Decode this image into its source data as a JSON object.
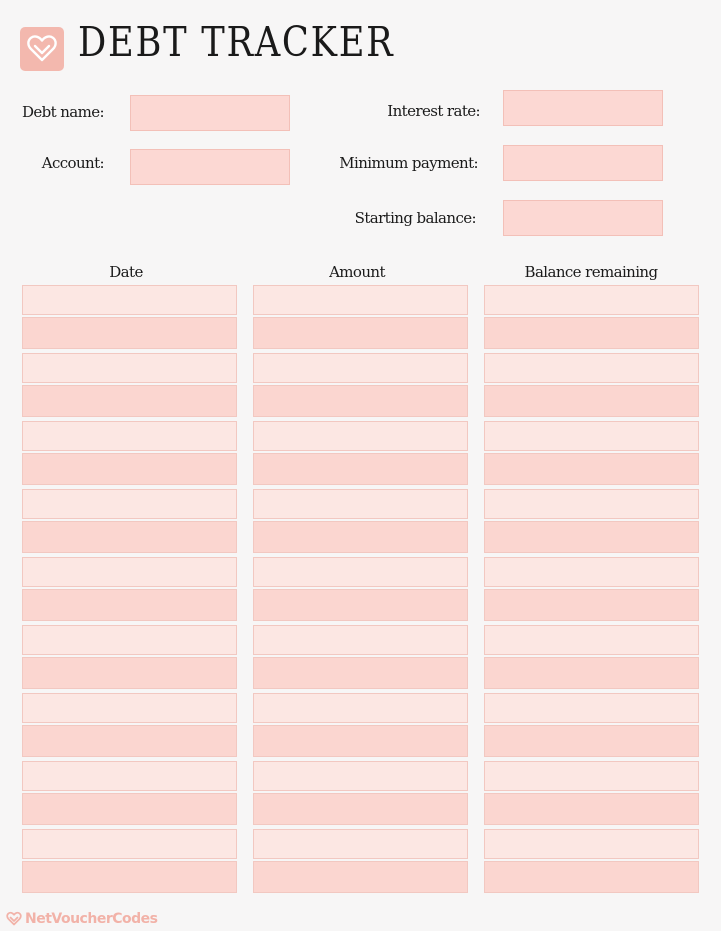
{
  "header": {
    "logo_icon": "heart-icon",
    "title": "DEBT TRACKER"
  },
  "fields": {
    "debt_name": {
      "label": "Debt name:",
      "value": ""
    },
    "account": {
      "label": "Account:",
      "value": ""
    },
    "interest_rate": {
      "label": "Interest rate:",
      "value": ""
    },
    "minimum_payment": {
      "label": "Minimum  payment:",
      "value": ""
    },
    "starting_balance": {
      "label": "Starting balance:",
      "value": ""
    }
  },
  "table": {
    "columns": [
      "Date",
      "Amount",
      "Balance remaining"
    ],
    "row_count": 18
  },
  "footer": {
    "brand_icon": "heart-icon",
    "brand": "NetVoucherCodes"
  },
  "colors": {
    "accent": "#f3b8ae",
    "field_fill": "#fcd8d3",
    "row_light": "#fce7e3",
    "row_dark": "#fbd6d0",
    "brand_text": "#f2b2a8"
  }
}
